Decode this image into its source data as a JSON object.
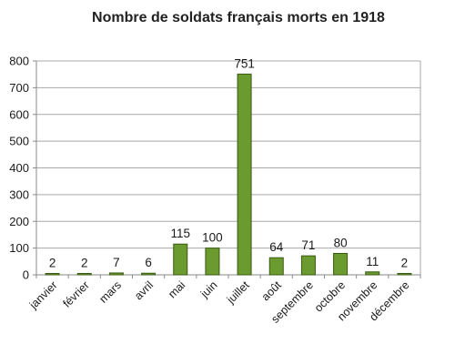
{
  "chart_data": {
    "type": "bar",
    "title": "Nombre de soldats français morts en 1918",
    "xlabel": "",
    "ylabel": "",
    "categories": [
      "janvier",
      "février",
      "mars",
      "avril",
      "mai",
      "juin",
      "juillet",
      "août",
      "septembre",
      "octobre",
      "novembre",
      "décembre"
    ],
    "values": [
      2,
      2,
      7,
      6,
      115,
      100,
      751,
      64,
      71,
      80,
      11,
      2
    ],
    "data_labels": [
      "2",
      "2",
      "7",
      "6",
      "115",
      "100",
      "751",
      "64",
      "71",
      "80",
      "11",
      "2"
    ],
    "ylim": [
      0,
      800
    ],
    "yticks": [
      0,
      100,
      200,
      300,
      400,
      500,
      600,
      700,
      800
    ],
    "ytick_labels": [
      "0",
      "100",
      "200",
      "300",
      "400",
      "500",
      "600",
      "700",
      "800"
    ],
    "grid": true,
    "legend": "none",
    "colors": {
      "bar_fill": "#6b9a2e",
      "bar_stroke": "#3a5a14",
      "grid": "#a8a8a8",
      "axis": "#8a8a8a",
      "text": "#1a1a1a"
    }
  }
}
